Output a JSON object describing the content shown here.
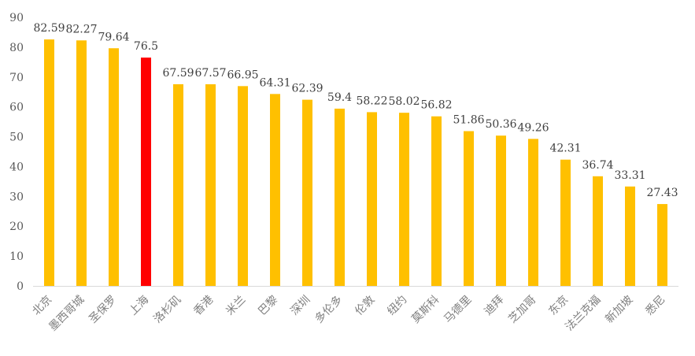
{
  "chart_data": {
    "type": "bar",
    "title": "",
    "xlabel": "",
    "ylabel": "",
    "ylim": [
      0,
      90
    ],
    "yticks": [
      0,
      10,
      20,
      30,
      40,
      50,
      60,
      70,
      80,
      90
    ],
    "grid": false,
    "legend": "none",
    "bar_color": "#FFC000",
    "highlight_color": "#FF0000",
    "highlight_category": "上海",
    "categories": [
      "北京",
      "墨西哥城",
      "圣保罗",
      "上海",
      "洛杉矶",
      "香港",
      "米兰",
      "巴黎",
      "深圳",
      "多伦多",
      "伦敦",
      "纽约",
      "莫斯科",
      "马德里",
      "迪拜",
      "芝加哥",
      "东京",
      "法兰克福",
      "新加坡",
      "悉尼"
    ],
    "values": [
      82.59,
      82.27,
      79.64,
      76.5,
      67.59,
      67.57,
      66.95,
      64.31,
      62.39,
      59.4,
      58.22,
      58.02,
      56.82,
      51.86,
      50.36,
      49.26,
      42.31,
      36.74,
      33.31,
      27.43
    ],
    "value_labels": [
      "82.59",
      "82.27",
      "79.64",
      "76.5",
      "67.59",
      "67.57",
      "66.95",
      "64.31",
      "62.39",
      "59.4",
      "58.22",
      "58.02",
      "56.82",
      "51.86",
      "50.36",
      "49.26",
      "42.31",
      "36.74",
      "33.31",
      "27.43"
    ]
  }
}
